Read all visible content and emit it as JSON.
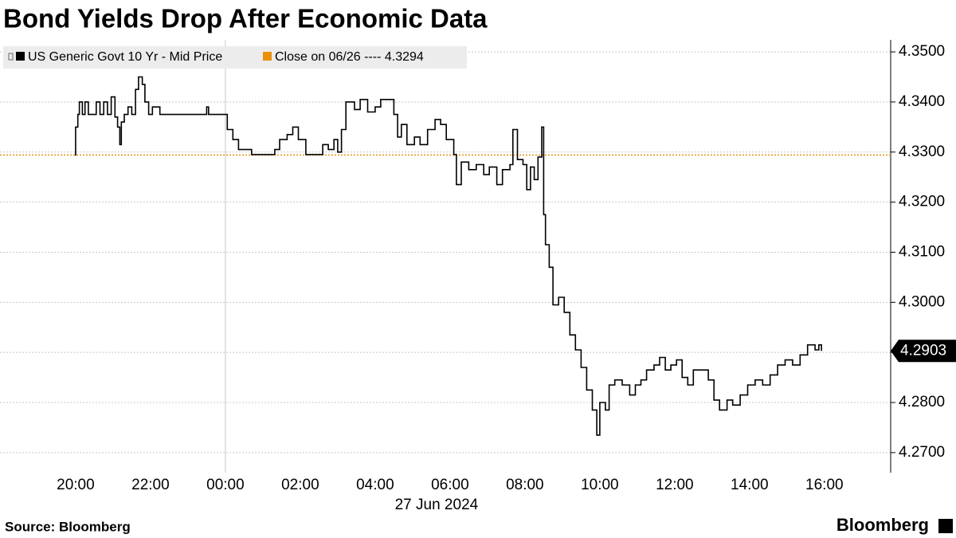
{
  "chart_data": {
    "type": "step-line",
    "title": "Bond Yields Drop After Economic Data",
    "date_label": "27 Jun 2024",
    "source": "Source: Bloomberg",
    "brand": "Bloomberg",
    "xlim": [
      -6.02,
      17.77
    ],
    "xticks": [
      {
        "value": -4,
        "label": "20:00"
      },
      {
        "value": -2,
        "label": "22:00"
      },
      {
        "value": 0,
        "label": "00:00"
      },
      {
        "value": 2,
        "label": "02:00"
      },
      {
        "value": 4,
        "label": "04:00"
      },
      {
        "value": 6,
        "label": "06:00"
      },
      {
        "value": 8,
        "label": "08:00"
      },
      {
        "value": 10,
        "label": "10:00"
      },
      {
        "value": 12,
        "label": "12:00"
      },
      {
        "value": 14,
        "label": "14:00"
      },
      {
        "value": 16,
        "label": "16:00"
      }
    ],
    "ylim": [
      4.266,
      4.3524
    ],
    "yticks": [
      {
        "value": 4.27,
        "label": "4.2700"
      },
      {
        "value": 4.28,
        "label": "4.2800"
      },
      {
        "value": 4.29,
        "label": "4.2900"
      },
      {
        "value": 4.3,
        "label": "4.3000"
      },
      {
        "value": 4.31,
        "label": "4.3100"
      },
      {
        "value": 4.32,
        "label": "4.3200"
      },
      {
        "value": 4.33,
        "label": "4.3300"
      },
      {
        "value": 4.34,
        "label": "4.3400"
      },
      {
        "value": 4.35,
        "label": "4.3500"
      }
    ],
    "grid": true,
    "reference_line": {
      "name": "Close on 06/26",
      "value": 4.3294,
      "color": "#e8900c"
    },
    "series": [
      {
        "name": "US Generic Govt 10 Yr - Mid Price",
        "color": "#000000",
        "x": [
          -4.02,
          -4.0,
          -3.94,
          -3.9,
          -3.82,
          -3.75,
          -3.66,
          -3.55,
          -3.45,
          -3.35,
          -3.25,
          -3.15,
          -3.05,
          -2.95,
          -2.88,
          -2.82,
          -2.78,
          -2.7,
          -2.6,
          -2.5,
          -2.4,
          -2.32,
          -2.22,
          -2.15,
          -2.05,
          -1.95,
          -1.75,
          -1.0,
          -0.5,
          -0.45,
          0.0,
          0.05,
          0.2,
          0.35,
          0.7,
          1.32,
          1.45,
          1.65,
          1.8,
          1.95,
          2.15,
          2.45,
          2.6,
          2.75,
          2.9,
          3.0,
          3.1,
          3.22,
          3.45,
          3.6,
          3.8,
          4.0,
          4.15,
          4.4,
          4.5,
          4.6,
          4.7,
          4.85,
          5.05,
          5.2,
          5.4,
          5.6,
          5.75,
          5.9,
          6.1,
          6.17,
          6.3,
          6.5,
          6.7,
          6.9,
          7.05,
          7.25,
          7.4,
          7.6,
          7.68,
          7.8,
          7.95,
          8.05,
          8.15,
          8.25,
          8.35,
          8.45,
          8.5,
          8.55,
          8.65,
          8.75,
          8.9,
          9.05,
          9.2,
          9.35,
          9.5,
          9.65,
          9.8,
          9.92,
          10.0,
          10.15,
          10.25,
          10.4,
          10.6,
          10.8,
          10.95,
          11.1,
          11.25,
          11.45,
          11.6,
          11.75,
          11.9,
          12.05,
          12.2,
          12.35,
          12.5,
          12.7,
          12.9,
          13.05,
          13.2,
          13.4,
          13.55,
          13.75,
          13.95,
          14.15,
          14.35,
          14.55,
          14.75,
          14.95,
          15.15,
          15.35,
          15.55,
          15.75,
          15.85,
          15.92
        ],
        "values": [
          4.3294,
          4.335,
          4.3375,
          4.34,
          4.3375,
          4.34,
          4.3375,
          4.3375,
          4.34,
          4.3375,
          4.34,
          4.3375,
          4.341,
          4.337,
          4.335,
          4.3315,
          4.336,
          4.3375,
          4.339,
          4.3375,
          4.3425,
          4.345,
          4.3435,
          4.34,
          4.3375,
          4.339,
          4.3375,
          4.3375,
          4.339,
          4.3375,
          4.3375,
          4.3345,
          4.3325,
          4.3305,
          4.3295,
          4.3305,
          4.3325,
          4.3335,
          4.335,
          4.3325,
          4.3295,
          4.3295,
          4.3315,
          4.3305,
          4.3325,
          4.33,
          4.3345,
          4.34,
          4.3385,
          4.3405,
          4.338,
          4.339,
          4.3405,
          4.3405,
          4.3375,
          4.333,
          4.3355,
          4.3315,
          4.333,
          4.3315,
          4.3345,
          4.3365,
          4.3355,
          4.3325,
          4.3295,
          4.3235,
          4.328,
          4.3265,
          4.3275,
          4.3255,
          4.327,
          4.3235,
          4.3265,
          4.3275,
          4.3345,
          4.3285,
          4.3275,
          4.3225,
          4.327,
          4.3245,
          4.329,
          4.335,
          4.3175,
          4.3115,
          4.307,
          4.2995,
          4.301,
          4.298,
          4.2935,
          4.2905,
          4.287,
          4.2825,
          4.2785,
          4.2735,
          4.28,
          4.2785,
          4.2835,
          4.2845,
          4.2835,
          4.2815,
          4.2835,
          4.2845,
          4.2865,
          4.2875,
          4.289,
          4.2865,
          4.2875,
          4.2885,
          4.285,
          4.2835,
          4.2865,
          4.2865,
          4.2845,
          4.2805,
          4.2785,
          4.2805,
          4.2795,
          4.2815,
          4.2835,
          4.2845,
          4.2835,
          4.2855,
          4.2875,
          4.2885,
          4.2875,
          4.2895,
          4.2915,
          4.2905,
          4.2915,
          4.2903
        ]
      }
    ]
  }
}
